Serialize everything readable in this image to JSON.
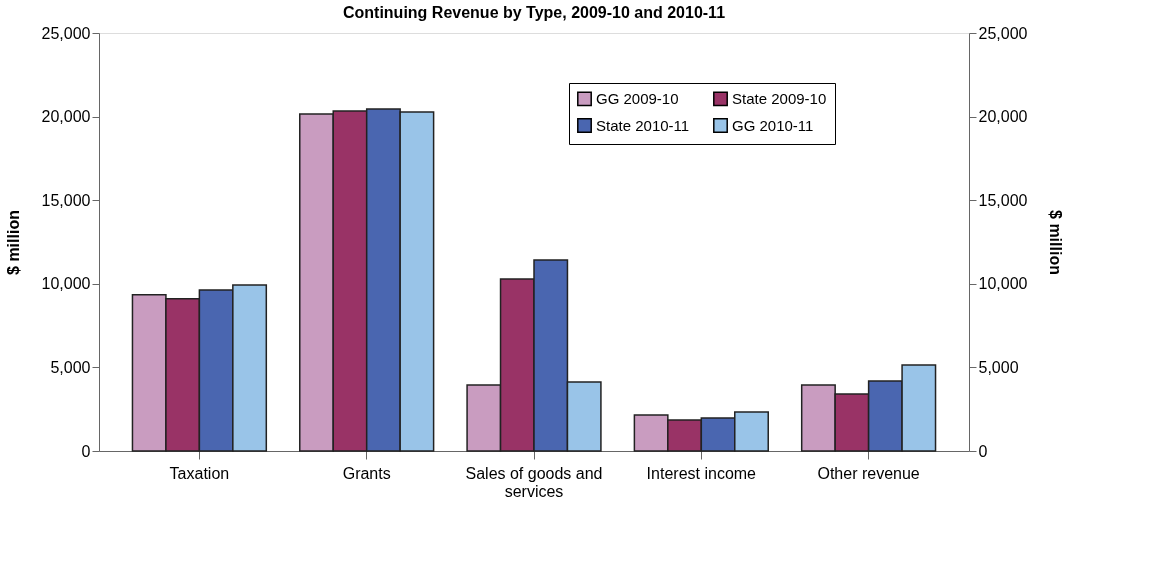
{
  "chart_data": {
    "type": "bar",
    "title": "Continuing Revenue by Type, 2009-10 and 2010-11",
    "ylabel": "$ million",
    "y2label": "$ million",
    "categories": [
      "Taxation",
      "Grants",
      "Sales of goods and services",
      "Interest income",
      "Other revenue"
    ],
    "series": [
      {
        "name": "GG 2009-10",
        "color": "#c99cc0",
        "values": [
          9350,
          20150,
          3950,
          2150,
          3950
        ]
      },
      {
        "name": "State 2009-10",
        "color": "#993366",
        "values": [
          9100,
          20330,
          10290,
          1850,
          3410
        ]
      },
      {
        "name": "State 2010-11",
        "color": "#4a66b0",
        "values": [
          9630,
          20450,
          11420,
          1970,
          4190
        ]
      },
      {
        "name": "GG 2010-11",
        "color": "#99c4e8",
        "values": [
          9930,
          20270,
          4130,
          2330,
          5140
        ]
      }
    ],
    "ylim": [
      0,
      25000
    ],
    "yticks": [
      0,
      {
        "value": 5000,
        "label": "5,000"
      },
      {
        "value": 10000,
        "label": "10,000"
      },
      {
        "value": 15000,
        "label": "15,000"
      },
      {
        "value": 20000,
        "label": "20,000"
      },
      {
        "value": 25000,
        "label": "25,000"
      }
    ],
    "y2lim": [
      0,
      25000
    ],
    "y2ticks": [
      0,
      {
        "value": 5000,
        "label": "5,000"
      },
      {
        "value": 10000,
        "label": "10,000"
      },
      {
        "value": 15000,
        "label": "15,000"
      },
      {
        "value": 20000,
        "label": "20,000"
      },
      {
        "value": 25000,
        "label": "25,000"
      }
    ],
    "grid": false,
    "legend": "top right"
  }
}
